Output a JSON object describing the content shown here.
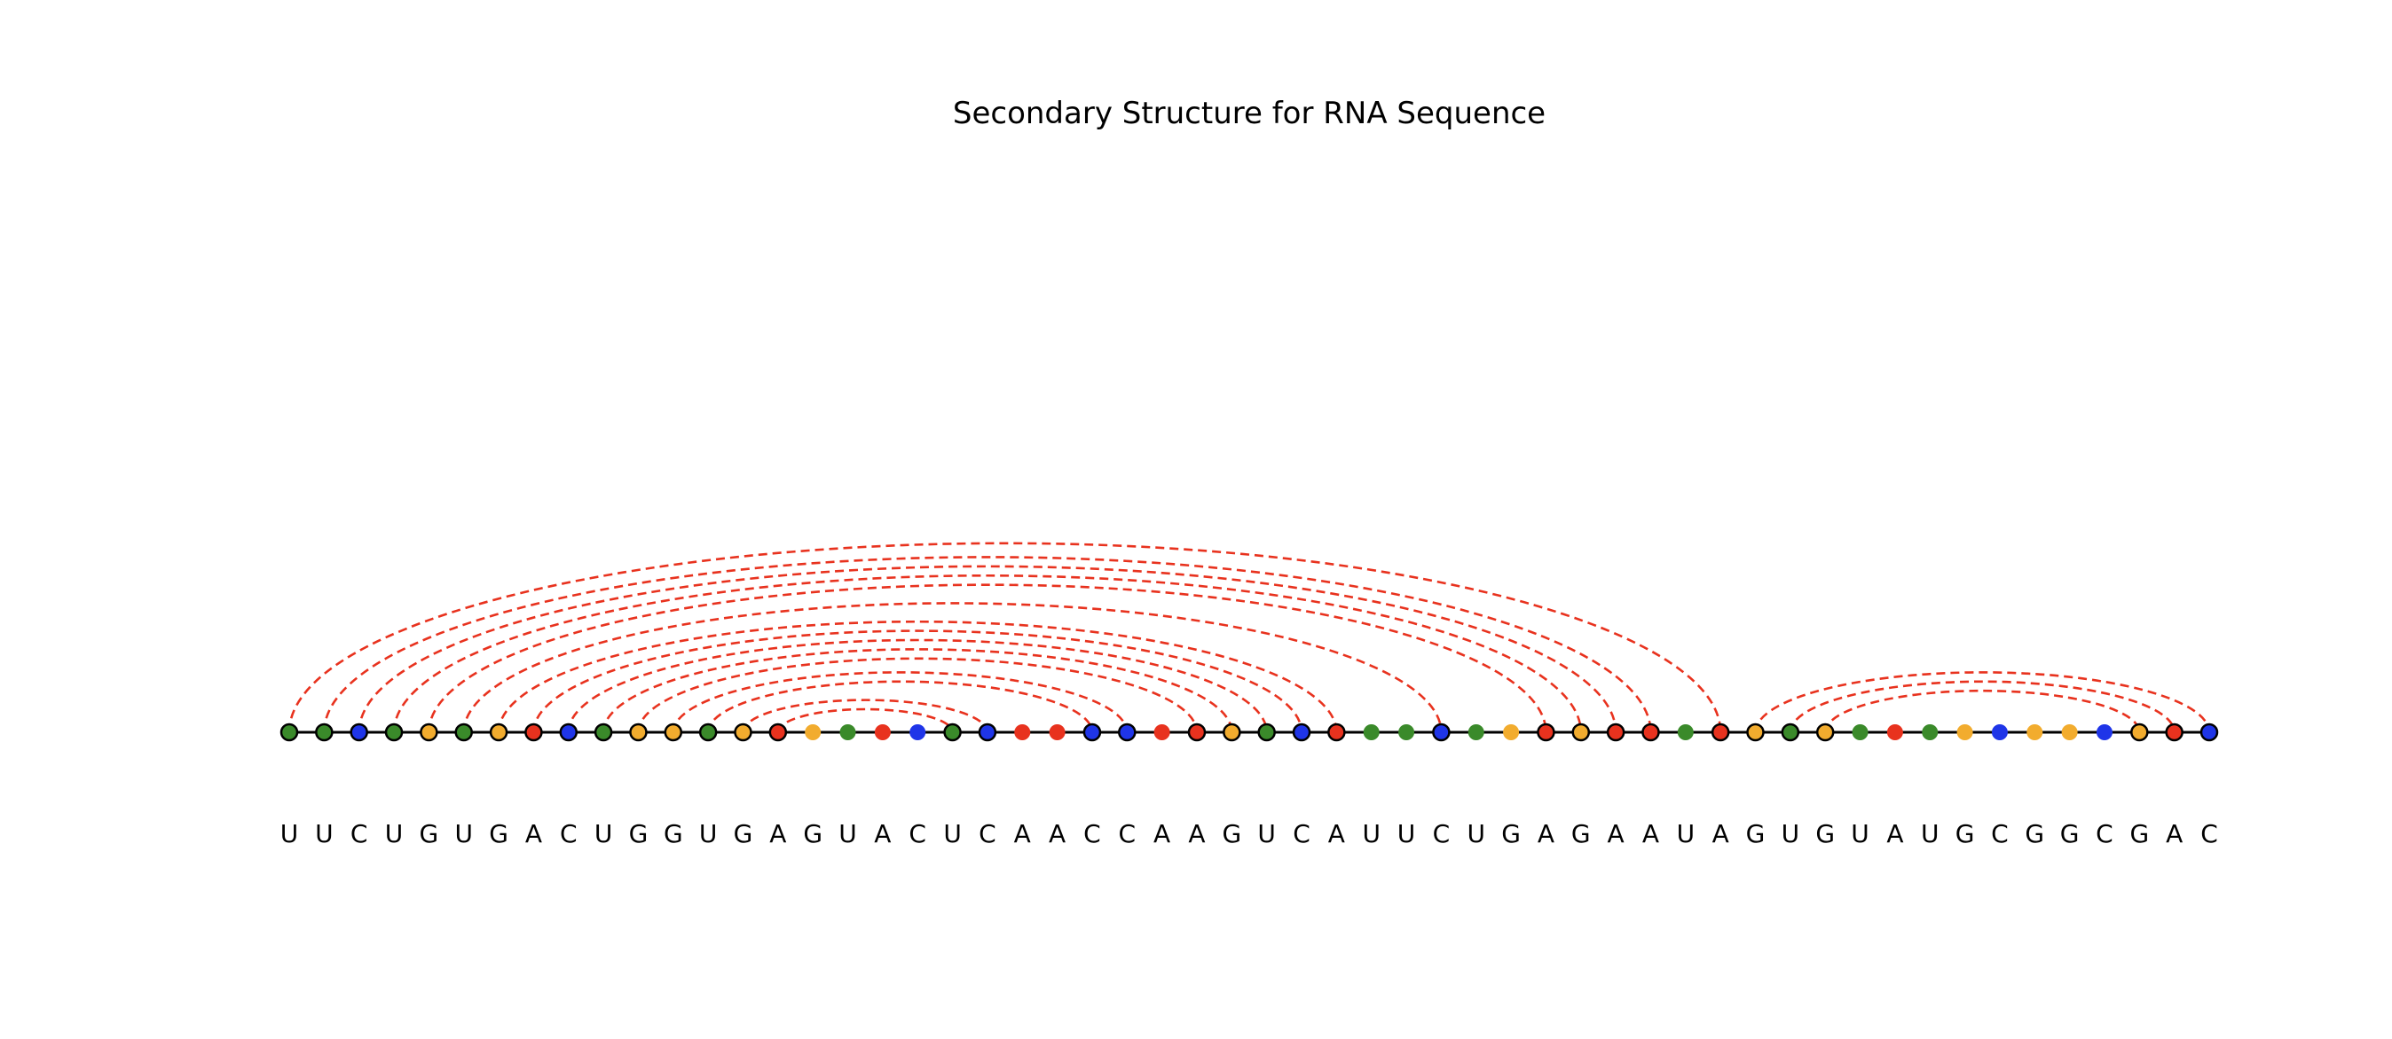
{
  "title": "Secondary Structure for RNA Sequence",
  "sequence": [
    "U",
    "U",
    "C",
    "U",
    "G",
    "U",
    "G",
    "A",
    "C",
    "U",
    "G",
    "G",
    "U",
    "G",
    "A",
    "G",
    "U",
    "A",
    "C",
    "U",
    "C",
    "A",
    "A",
    "C",
    "C",
    "A",
    "A",
    "G",
    "U",
    "C",
    "A",
    "U",
    "U",
    "C",
    "U",
    "G",
    "A",
    "G",
    "A",
    "A",
    "U",
    "A",
    "G",
    "U",
    "G",
    "U",
    "A",
    "U",
    "G",
    "C",
    "G",
    "G",
    "C",
    "G",
    "A",
    "C"
  ],
  "node_colors": [
    "green",
    "green",
    "blue",
    "green",
    "orange",
    "green",
    "orange",
    "red",
    "blue",
    "green",
    "orange",
    "orange",
    "green",
    "orange",
    "red",
    "orange",
    "green",
    "red",
    "blue",
    "green",
    "blue",
    "red",
    "red",
    "blue",
    "blue",
    "red",
    "red",
    "orange",
    "green",
    "blue",
    "red",
    "green",
    "green",
    "blue",
    "green",
    "orange",
    "red",
    "orange",
    "red",
    "red",
    "green",
    "red",
    "orange",
    "green",
    "orange",
    "green",
    "red",
    "green",
    "orange",
    "blue",
    "orange",
    "orange",
    "blue",
    "orange",
    "red",
    "blue"
  ],
  "colors": {
    "green": "#3a8a2a",
    "blue": "#1f35e8",
    "orange": "#f2ac2e",
    "red": "#e8321e",
    "arc": "#e8321e"
  },
  "pairs": [
    [
      0,
      41
    ],
    [
      1,
      39
    ],
    [
      2,
      38
    ],
    [
      3,
      37
    ],
    [
      4,
      36
    ],
    [
      5,
      33
    ],
    [
      6,
      30
    ],
    [
      7,
      29
    ],
    [
      8,
      28
    ],
    [
      9,
      27
    ],
    [
      10,
      26
    ],
    [
      11,
      24
    ],
    [
      12,
      23
    ],
    [
      13,
      20
    ],
    [
      14,
      19
    ],
    [
      42,
      55
    ],
    [
      43,
      54
    ],
    [
      44,
      53
    ]
  ]
}
